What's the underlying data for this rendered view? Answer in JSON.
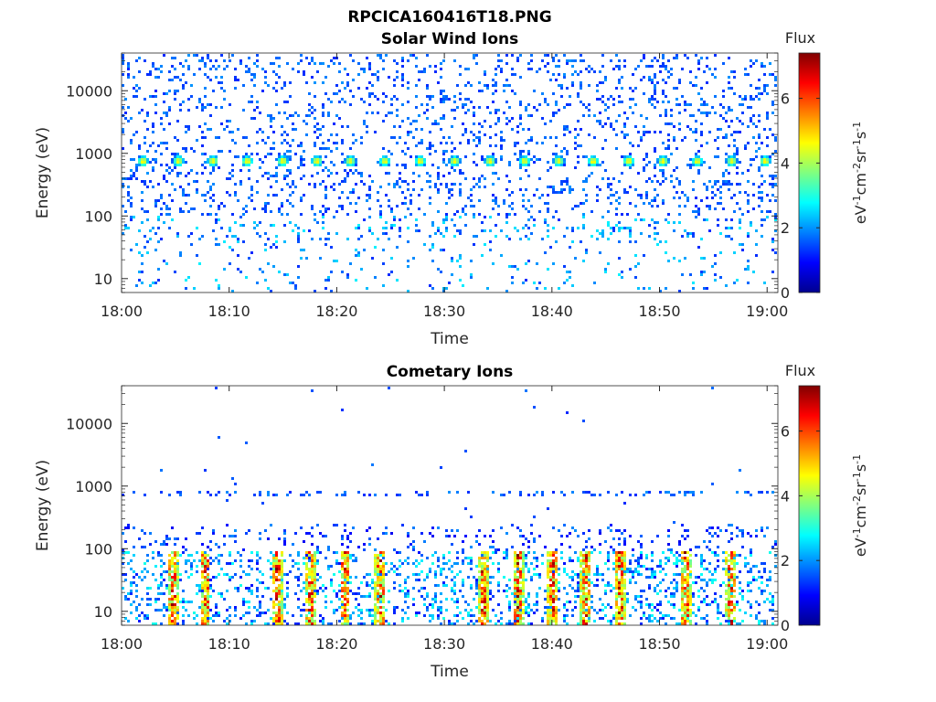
{
  "figure": {
    "title": "RPCICA160416T18.PNG"
  },
  "chart_data": [
    {
      "type": "heatmap",
      "title": "Solar Wind Ions",
      "xlabel": "Time",
      "ylabel": "Energy (eV)",
      "x_ticks": [
        "18:00",
        "18:10",
        "18:20",
        "18:30",
        "18:40",
        "18:50",
        "19:00"
      ],
      "x_range_minutes": [
        0,
        61
      ],
      "y_ticks": [
        10,
        100,
        1000,
        10000
      ],
      "y_range": [
        6,
        40000
      ],
      "y_scale": "log",
      "colorbar": {
        "label": "Flux",
        "unit_label": "eV-1cm-2sr-1s-1",
        "ticks": [
          0,
          2,
          4,
          6
        ],
        "range": [
          0,
          7.4
        ],
        "colormap": "jet"
      },
      "features": {
        "peak_energy_eV": 750,
        "peak_flux": 4.5,
        "pulse_times_min": [
          2.0,
          5.3,
          8.5,
          11.7,
          15.0,
          18.2,
          21.3,
          24.5,
          27.8,
          31.0,
          34.3,
          37.5,
          40.7,
          43.9,
          47.2,
          50.4,
          53.6,
          56.8,
          59.9
        ],
        "background_flux": 1.2
      }
    },
    {
      "type": "heatmap",
      "title": "Cometary Ions",
      "xlabel": "Time",
      "ylabel": "Energy (eV)",
      "x_ticks": [
        "18:00",
        "18:10",
        "18:20",
        "18:30",
        "18:40",
        "18:50",
        "19:00"
      ],
      "x_range_minutes": [
        0,
        61
      ],
      "y_ticks": [
        10,
        100,
        1000,
        10000
      ],
      "y_range": [
        6,
        40000
      ],
      "y_scale": "log",
      "colorbar": {
        "label": "Flux",
        "unit_label": "eV-1cm-2sr-1s-1",
        "ticks": [
          0,
          2,
          4,
          6
        ],
        "range": [
          0,
          7.4
        ],
        "colormap": "jet"
      },
      "features": {
        "low_energy_band_eV": [
          6,
          90
        ],
        "high_flux_times_min": [
          4.8,
          7.8,
          14.5,
          17.6,
          20.8,
          24.1,
          33.7,
          36.9,
          40.1,
          43.2,
          46.4,
          52.5,
          56.7
        ],
        "peak_flux": 6.5,
        "sparse_band_eV": 750
      }
    }
  ]
}
